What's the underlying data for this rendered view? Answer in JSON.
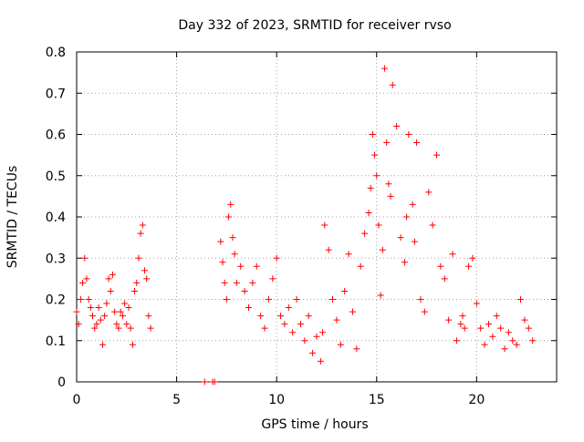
{
  "chart_data": {
    "type": "scatter",
    "title": "Day 332 of 2023, SRMTID for receiver rvso",
    "xlabel": "GPS time / hours",
    "ylabel": "SRMTID / TECUs",
    "xlim": [
      0,
      24
    ],
    "ylim": [
      0,
      0.8
    ],
    "x_ticks": [
      0,
      5,
      10,
      15,
      20
    ],
    "x_tick_labels": [
      "0",
      "5",
      "10",
      "15",
      "20"
    ],
    "y_ticks": [
      0,
      0.1,
      0.2,
      0.3,
      0.4,
      0.5,
      0.6,
      0.7,
      0.8
    ],
    "y_tick_labels": [
      "0",
      "0.1",
      "0.2",
      "0.3",
      "0.4",
      "0.5",
      "0.6",
      "0.7",
      "0.8"
    ],
    "grid": true,
    "marker": "+",
    "series": [
      {
        "name": "rvso",
        "color": "#ff0000",
        "x": [
          0.0,
          0.1,
          0.2,
          0.3,
          0.4,
          0.5,
          0.6,
          0.7,
          0.8,
          0.9,
          1.0,
          1.1,
          1.2,
          1.3,
          1.4,
          1.5,
          1.6,
          1.7,
          1.8,
          1.9,
          2.0,
          2.1,
          2.2,
          2.3,
          2.4,
          2.5,
          2.6,
          2.7,
          2.8,
          2.9,
          3.0,
          3.1,
          3.2,
          3.3,
          3.4,
          3.5,
          3.6,
          3.7,
          6.4,
          6.8,
          6.9,
          7.2,
          7.3,
          7.4,
          7.5,
          7.6,
          7.7,
          7.8,
          7.9,
          8.0,
          8.2,
          8.4,
          8.6,
          8.8,
          9.0,
          9.2,
          9.4,
          9.6,
          9.8,
          10.0,
          10.2,
          10.4,
          10.6,
          10.8,
          11.0,
          11.2,
          11.4,
          11.6,
          11.8,
          12.0,
          12.2,
          12.3,
          12.4,
          12.6,
          12.8,
          13.0,
          13.2,
          13.4,
          13.6,
          13.8,
          14.0,
          14.2,
          14.4,
          14.6,
          14.7,
          14.8,
          14.9,
          15.0,
          15.1,
          15.2,
          15.3,
          15.4,
          15.5,
          15.6,
          15.7,
          15.8,
          16.0,
          16.2,
          16.4,
          16.5,
          16.6,
          16.8,
          16.9,
          17.0,
          17.2,
          17.4,
          17.6,
          17.8,
          18.0,
          18.2,
          18.4,
          18.6,
          18.8,
          19.0,
          19.2,
          19.3,
          19.4,
          19.6,
          19.8,
          20.0,
          20.2,
          20.4,
          20.6,
          20.8,
          21.0,
          21.2,
          21.4,
          21.6,
          21.8,
          22.0,
          22.2,
          22.4,
          22.6,
          22.8
        ],
        "y": [
          0.17,
          0.14,
          0.2,
          0.24,
          0.3,
          0.25,
          0.2,
          0.18,
          0.16,
          0.13,
          0.14,
          0.18,
          0.15,
          0.09,
          0.16,
          0.19,
          0.25,
          0.22,
          0.26,
          0.17,
          0.14,
          0.13,
          0.17,
          0.16,
          0.19,
          0.14,
          0.18,
          0.13,
          0.09,
          0.22,
          0.24,
          0.3,
          0.36,
          0.38,
          0.27,
          0.25,
          0.16,
          0.13,
          0.0,
          0.0,
          0.0,
          0.34,
          0.29,
          0.24,
          0.2,
          0.4,
          0.43,
          0.35,
          0.31,
          0.24,
          0.28,
          0.22,
          0.18,
          0.24,
          0.28,
          0.16,
          0.13,
          0.2,
          0.25,
          0.3,
          0.16,
          0.14,
          0.18,
          0.12,
          0.2,
          0.14,
          0.1,
          0.16,
          0.07,
          0.11,
          0.05,
          0.12,
          0.38,
          0.32,
          0.2,
          0.15,
          0.09,
          0.22,
          0.31,
          0.17,
          0.08,
          0.28,
          0.36,
          0.41,
          0.47,
          0.6,
          0.55,
          0.5,
          0.38,
          0.21,
          0.32,
          0.76,
          0.58,
          0.48,
          0.45,
          0.72,
          0.62,
          0.35,
          0.29,
          0.4,
          0.6,
          0.43,
          0.34,
          0.58,
          0.2,
          0.17,
          0.46,
          0.38,
          0.55,
          0.28,
          0.25,
          0.15,
          0.31,
          0.1,
          0.14,
          0.16,
          0.13,
          0.28,
          0.3,
          0.19,
          0.13,
          0.09,
          0.14,
          0.11,
          0.16,
          0.13,
          0.08,
          0.12,
          0.1,
          0.09,
          0.2,
          0.15,
          0.13,
          0.1
        ]
      }
    ]
  }
}
